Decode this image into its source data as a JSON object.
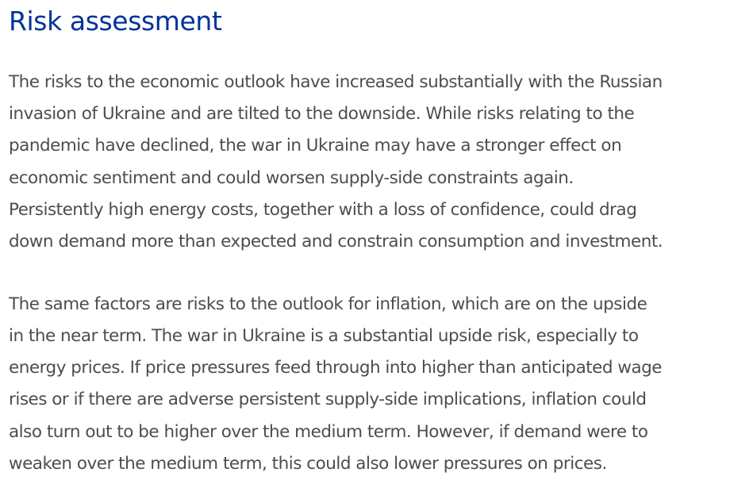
{
  "section": {
    "title": "Risk assessment"
  },
  "paragraphs": [
    {
      "lines": [
        "The risks to the economic outlook have increased substantially with the Russian",
        "invasion of Ukraine and are tilted to the downside. While risks relating to the",
        "pandemic have declined, the war in Ukraine may have a stronger effect on",
        "economic sentiment and could worsen supply-side constraints again.",
        "Persistently high energy costs, together with a loss of confidence, could drag",
        "down demand more than expected and constrain consumption and investment."
      ]
    },
    {
      "lines": [
        "The same factors are risks to the outlook for inflation, which are on the upside",
        "in the near term. The war in Ukraine is a substantial upside risk, especially to",
        "energy prices. If price pressures feed through into higher than anticipated wage",
        "rises or if there are adverse persistent supply-side implications, inflation could",
        "also turn out to be higher over the medium term. However, if demand were to",
        "weaken over the medium term, this could also lower pressures on prices."
      ]
    }
  ]
}
